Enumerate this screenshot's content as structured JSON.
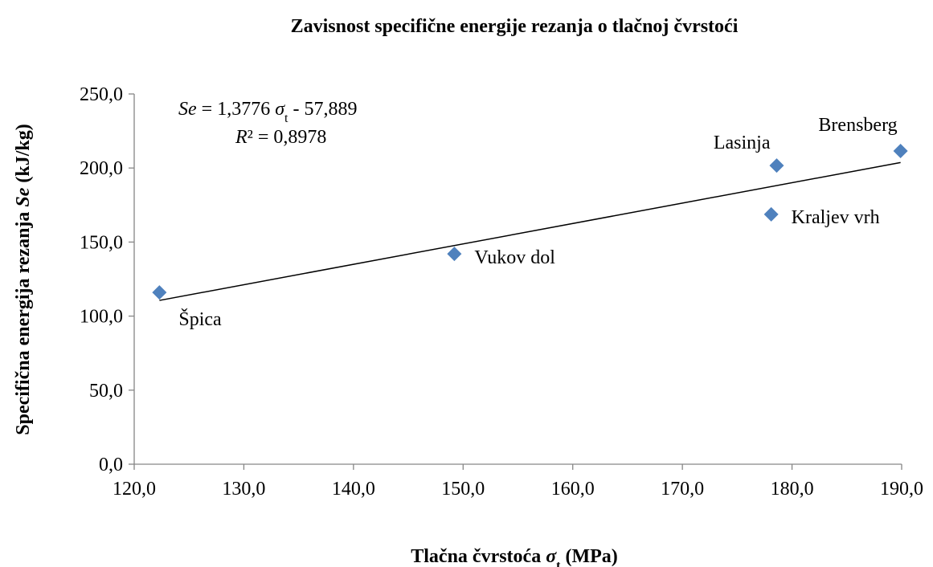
{
  "chart_data": {
    "type": "scatter",
    "title": "Zavisnost specifične energije rezanja o tlačnoj čvrstoći",
    "x_label_parts": [
      "Tlačna čvrstoća ",
      "σ",
      "t",
      "  (MPa)"
    ],
    "y_label_parts": [
      "Specifična energija rezanja ",
      "Se",
      " (kJ/kg)"
    ],
    "labels": [
      "Špica",
      "Vukov dol",
      "Lasinja",
      "Kraljev vrh",
      "Brensberg"
    ],
    "x": [
      122.3,
      149.2,
      178.6,
      178.1,
      189.9
    ],
    "values": [
      116,
      142,
      201.7,
      168.7,
      211.5
    ],
    "color": "#4f81bd",
    "xlim": [
      120,
      190
    ],
    "ylim": [
      0,
      250
    ],
    "xticks": [
      {
        "value": 120,
        "label": "120,0"
      },
      {
        "value": 130,
        "label": "130,0"
      },
      {
        "value": 140,
        "label": "140,0"
      },
      {
        "value": 150,
        "label": "150,0"
      },
      {
        "value": 160,
        "label": "160,0"
      },
      {
        "value": 170,
        "label": "170,0"
      },
      {
        "value": 180,
        "label": "180,0"
      },
      {
        "value": 190,
        "label": "190,0"
      }
    ],
    "yticks": [
      {
        "value": 0,
        "label": "0,0"
      },
      {
        "value": 50,
        "label": "50,0"
      },
      {
        "value": 100,
        "label": "100,0"
      },
      {
        "value": 150,
        "label": "150,0"
      },
      {
        "value": 200,
        "label": "200,0"
      },
      {
        "value": 250,
        "label": "250,0"
      }
    ],
    "grid": false,
    "trendline": {
      "slope": 1.3776,
      "intercept": -57.889,
      "r2": 0.8978,
      "equation_parts": [
        "Se",
        " = 1,3776 ",
        "σ",
        "t",
        " - 57,889"
      ],
      "r2_parts": [
        "R",
        "² = 0,8978"
      ]
    }
  }
}
